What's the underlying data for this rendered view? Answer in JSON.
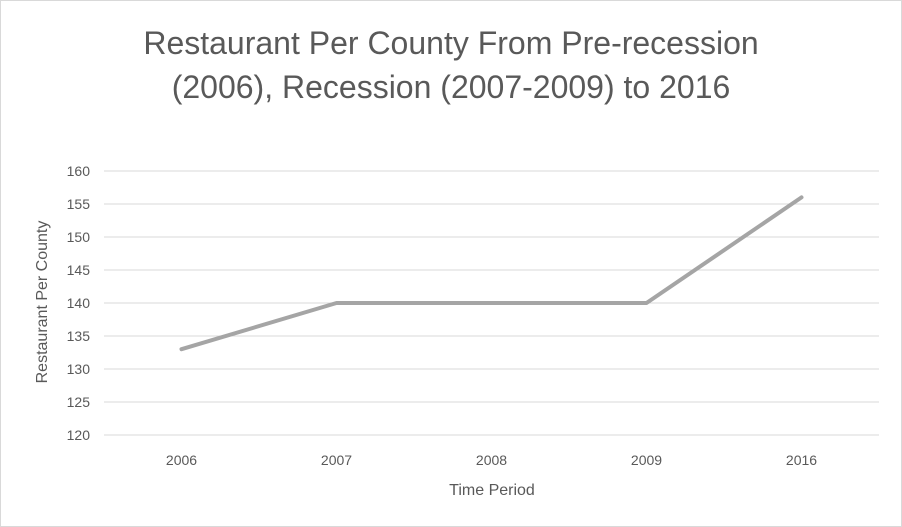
{
  "chart_data": {
    "type": "line",
    "title_lines": [
      "Restaurant Per County From Pre-recession",
      "(2006), Recession (2007-2009) to 2016"
    ],
    "title": "Restaurant Per County From Pre-recession (2006), Recession (2007-2009) to 2016",
    "xlabel": "Time Period",
    "ylabel": "Restaurant Per County",
    "categories": [
      "2006",
      "2007",
      "2008",
      "2009",
      "2016"
    ],
    "series": [
      {
        "values": [
          133,
          140,
          140,
          140,
          156
        ],
        "color": "#a5a5a5"
      }
    ],
    "ylim": [
      120,
      160
    ],
    "yticks": [
      120,
      125,
      130,
      135,
      140,
      145,
      150,
      155,
      160
    ],
    "grid": true,
    "legend": "none",
    "colors": {
      "text": "#595959",
      "gridline": "#d9d9d9",
      "line": "#a5a5a5"
    }
  }
}
